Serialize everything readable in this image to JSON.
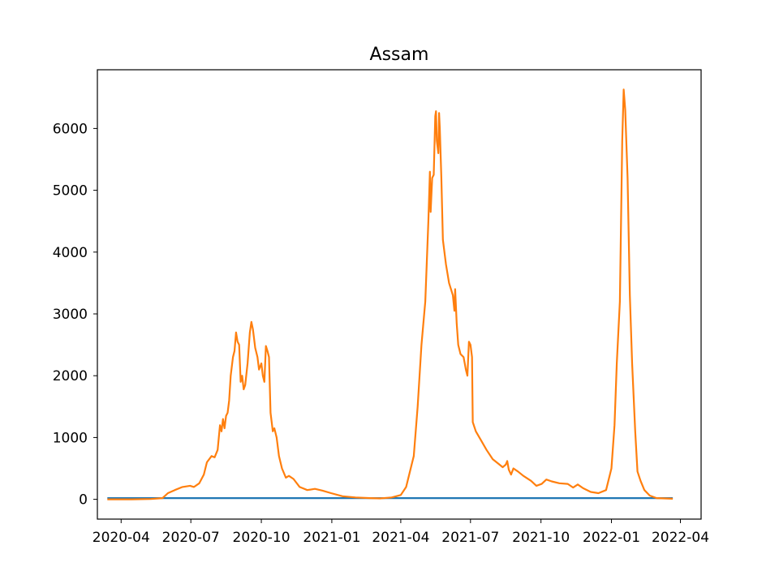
{
  "chart_data": {
    "type": "line",
    "title": "Assam",
    "xlabel": "",
    "ylabel": "",
    "grid": false,
    "x_axis": {
      "type": "date",
      "range": [
        "2020-03-01",
        "2022-04-28"
      ],
      "ticks": [
        "2020-04",
        "2020-07",
        "2020-10",
        "2021-01",
        "2021-04",
        "2021-07",
        "2021-10",
        "2022-01",
        "2022-04"
      ],
      "tick_dates": [
        "2020-04-01",
        "2020-07-01",
        "2020-10-01",
        "2021-01-01",
        "2021-04-01",
        "2021-07-01",
        "2021-10-01",
        "2022-01-01",
        "2022-04-01"
      ]
    },
    "y_axis": {
      "range": [
        -320,
        6950
      ],
      "ticks": [
        0,
        1000,
        2000,
        3000,
        4000,
        5000,
        6000
      ]
    },
    "series": [
      {
        "color": "#1f77b4",
        "points": [
          [
            "2020-03-14",
            20
          ],
          [
            "2022-03-22",
            20
          ]
        ]
      },
      {
        "color": "#ff7f0e",
        "points": [
          [
            "2020-03-14",
            0
          ],
          [
            "2020-04-15",
            0
          ],
          [
            "2020-05-10",
            5
          ],
          [
            "2020-05-25",
            20
          ],
          [
            "2020-06-01",
            100
          ],
          [
            "2020-06-10",
            150
          ],
          [
            "2020-06-20",
            200
          ],
          [
            "2020-06-30",
            220
          ],
          [
            "2020-07-05",
            200
          ],
          [
            "2020-07-12",
            260
          ],
          [
            "2020-07-18",
            400
          ],
          [
            "2020-07-22",
            600
          ],
          [
            "2020-07-28",
            700
          ],
          [
            "2020-08-01",
            680
          ],
          [
            "2020-08-05",
            800
          ],
          [
            "2020-08-08",
            1200
          ],
          [
            "2020-08-10",
            1100
          ],
          [
            "2020-08-12",
            1300
          ],
          [
            "2020-08-14",
            1150
          ],
          [
            "2020-08-16",
            1350
          ],
          [
            "2020-08-18",
            1400
          ],
          [
            "2020-08-20",
            1600
          ],
          [
            "2020-08-22",
            2000
          ],
          [
            "2020-08-25",
            2300
          ],
          [
            "2020-08-27",
            2400
          ],
          [
            "2020-08-29",
            2700
          ],
          [
            "2020-08-31",
            2550
          ],
          [
            "2020-09-02",
            2500
          ],
          [
            "2020-09-04",
            1900
          ],
          [
            "2020-09-06",
            2000
          ],
          [
            "2020-09-08",
            1780
          ],
          [
            "2020-09-10",
            1850
          ],
          [
            "2020-09-13",
            2200
          ],
          [
            "2020-09-16",
            2700
          ],
          [
            "2020-09-18",
            2870
          ],
          [
            "2020-09-20",
            2750
          ],
          [
            "2020-09-23",
            2450
          ],
          [
            "2020-09-26",
            2300
          ],
          [
            "2020-09-28",
            2100
          ],
          [
            "2020-10-01",
            2200
          ],
          [
            "2020-10-03",
            2000
          ],
          [
            "2020-10-05",
            1900
          ],
          [
            "2020-10-07",
            2480
          ],
          [
            "2020-10-09",
            2400
          ],
          [
            "2020-10-11",
            2300
          ],
          [
            "2020-10-13",
            1400
          ],
          [
            "2020-10-16",
            1100
          ],
          [
            "2020-10-18",
            1150
          ],
          [
            "2020-10-21",
            1000
          ],
          [
            "2020-10-24",
            700
          ],
          [
            "2020-10-28",
            500
          ],
          [
            "2020-11-02",
            350
          ],
          [
            "2020-11-06",
            380
          ],
          [
            "2020-11-12",
            330
          ],
          [
            "2020-11-20",
            200
          ],
          [
            "2020-11-30",
            150
          ],
          [
            "2020-12-10",
            170
          ],
          [
            "2020-12-20",
            140
          ],
          [
            "2020-12-31",
            100
          ],
          [
            "2021-01-15",
            50
          ],
          [
            "2021-02-01",
            30
          ],
          [
            "2021-02-20",
            20
          ],
          [
            "2021-03-05",
            15
          ],
          [
            "2021-03-20",
            30
          ],
          [
            "2021-04-01",
            70
          ],
          [
            "2021-04-08",
            200
          ],
          [
            "2021-04-13",
            450
          ],
          [
            "2021-04-18",
            700
          ],
          [
            "2021-04-23",
            1500
          ],
          [
            "2021-04-28",
            2500
          ],
          [
            "2021-05-03",
            3200
          ],
          [
            "2021-05-07",
            4500
          ],
          [
            "2021-05-09",
            5300
          ],
          [
            "2021-05-10",
            4650
          ],
          [
            "2021-05-12",
            5200
          ],
          [
            "2021-05-14",
            5250
          ],
          [
            "2021-05-16",
            6200
          ],
          [
            "2021-05-17",
            6280
          ],
          [
            "2021-05-18",
            5800
          ],
          [
            "2021-05-20",
            5600
          ],
          [
            "2021-05-21",
            6250
          ],
          [
            "2021-05-22",
            6000
          ],
          [
            "2021-05-24",
            5200
          ],
          [
            "2021-05-26",
            4200
          ],
          [
            "2021-05-30",
            3800
          ],
          [
            "2021-06-03",
            3500
          ],
          [
            "2021-06-08",
            3300
          ],
          [
            "2021-06-10",
            3050
          ],
          [
            "2021-06-11",
            3400
          ],
          [
            "2021-06-13",
            2850
          ],
          [
            "2021-06-15",
            2500
          ],
          [
            "2021-06-18",
            2350
          ],
          [
            "2021-06-22",
            2300
          ],
          [
            "2021-06-25",
            2100
          ],
          [
            "2021-06-27",
            2000
          ],
          [
            "2021-06-29",
            2550
          ],
          [
            "2021-07-01",
            2500
          ],
          [
            "2021-07-03",
            2300
          ],
          [
            "2021-07-04",
            1250
          ],
          [
            "2021-07-08",
            1100
          ],
          [
            "2021-07-15",
            950
          ],
          [
            "2021-07-22",
            800
          ],
          [
            "2021-07-30",
            650
          ],
          [
            "2021-08-06",
            580
          ],
          [
            "2021-08-12",
            520
          ],
          [
            "2021-08-16",
            560
          ],
          [
            "2021-08-18",
            620
          ],
          [
            "2021-08-20",
            480
          ],
          [
            "2021-08-23",
            400
          ],
          [
            "2021-08-26",
            500
          ],
          [
            "2021-09-01",
            450
          ],
          [
            "2021-09-08",
            380
          ],
          [
            "2021-09-18",
            300
          ],
          [
            "2021-09-25",
            220
          ],
          [
            "2021-10-02",
            250
          ],
          [
            "2021-10-08",
            320
          ],
          [
            "2021-10-15",
            290
          ],
          [
            "2021-10-25",
            260
          ],
          [
            "2021-11-05",
            250
          ],
          [
            "2021-11-12",
            190
          ],
          [
            "2021-11-18",
            240
          ],
          [
            "2021-11-25",
            180
          ],
          [
            "2021-12-05",
            120
          ],
          [
            "2021-12-15",
            100
          ],
          [
            "2021-12-25",
            150
          ],
          [
            "2022-01-01",
            500
          ],
          [
            "2022-01-05",
            1200
          ],
          [
            "2022-01-08",
            2200
          ],
          [
            "2022-01-12",
            3200
          ],
          [
            "2022-01-15",
            5800
          ],
          [
            "2022-01-17",
            6630
          ],
          [
            "2022-01-19",
            6300
          ],
          [
            "2022-01-22",
            5200
          ],
          [
            "2022-01-25",
            3300
          ],
          [
            "2022-01-28",
            2200
          ],
          [
            "2022-02-01",
            1100
          ],
          [
            "2022-02-04",
            450
          ],
          [
            "2022-02-08",
            300
          ],
          [
            "2022-02-13",
            150
          ],
          [
            "2022-02-20",
            60
          ],
          [
            "2022-03-01",
            20
          ],
          [
            "2022-03-22",
            10
          ]
        ]
      }
    ]
  }
}
